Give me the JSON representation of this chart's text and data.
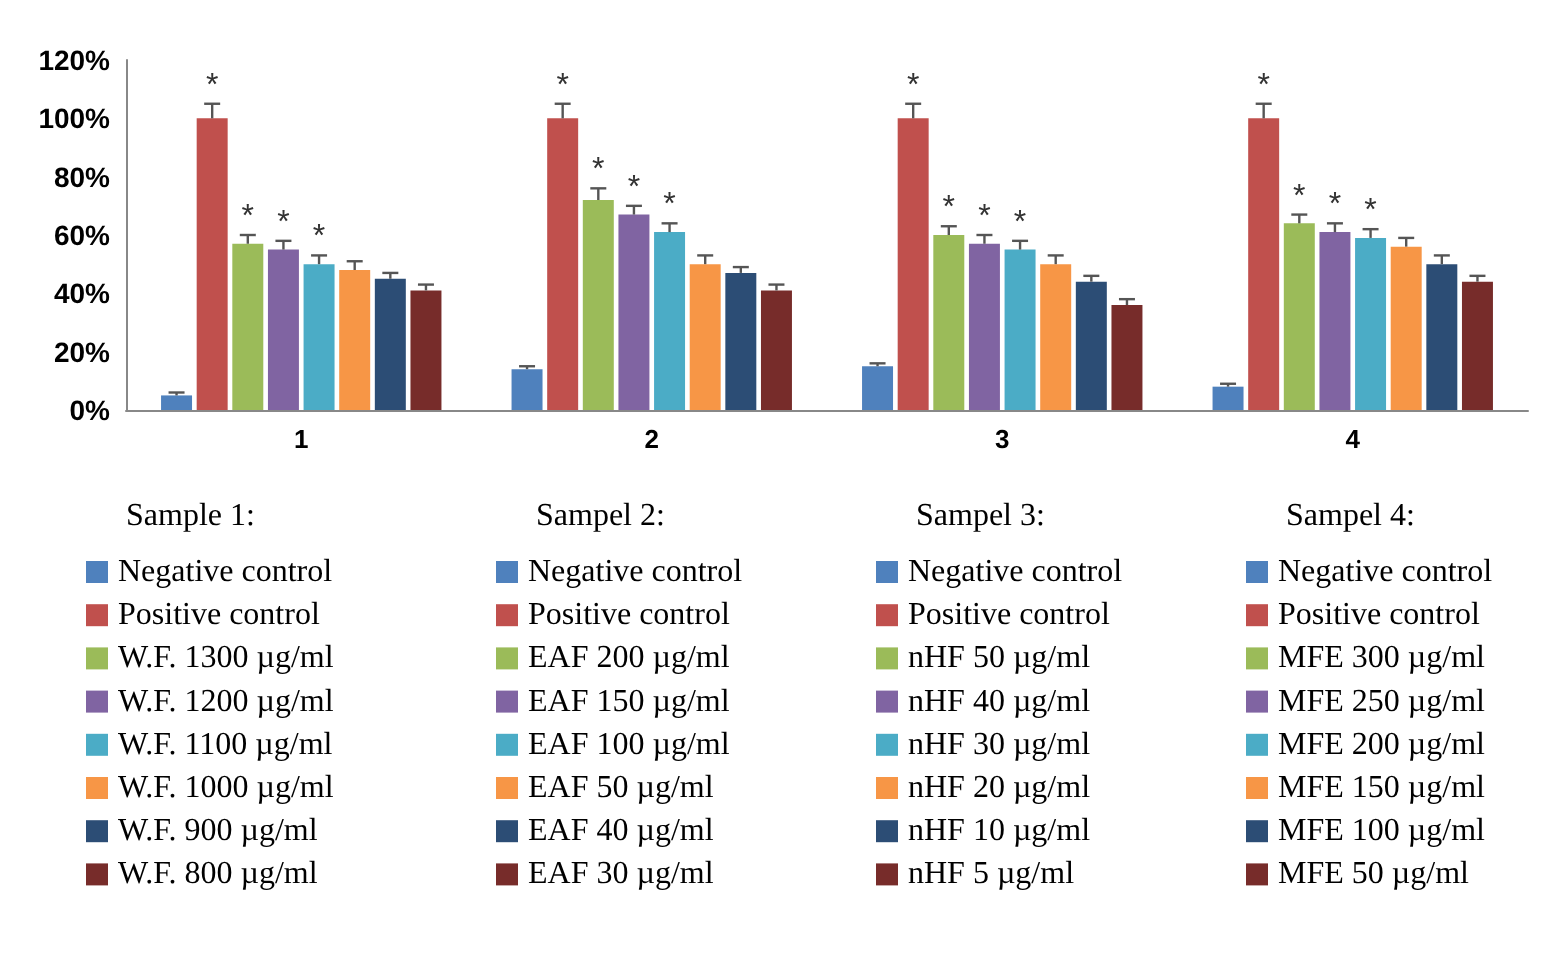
{
  "chart_data": {
    "type": "bar",
    "categories": [
      "1",
      "2",
      "3",
      "4"
    ],
    "ylim": [
      0,
      120
    ],
    "yticks": [
      {
        "value": 0,
        "label": "0%"
      },
      {
        "value": 20,
        "label": "20%"
      },
      {
        "value": 40,
        "label": "40%"
      },
      {
        "value": 60,
        "label": "60%"
      },
      {
        "value": 80,
        "label": "80%"
      },
      {
        "value": 100,
        "label": "100%"
      },
      {
        "value": 120,
        "label": "120%"
      }
    ],
    "grid": false,
    "legend": "bottom",
    "annotations": [
      "Sample 1:",
      "Sampel 2:",
      "Sampel 3:",
      "Sampel 4:"
    ],
    "series": [
      {
        "name": "Negative control",
        "color": "#4f81bd",
        "values": [
          5,
          null,
          null,
          null
        ],
        "errors": [
          1,
          null,
          null,
          null
        ],
        "value_labels": [
          null,
          null,
          null,
          null
        ]
      },
      {
        "name": "Positive control",
        "color": "#c0504d",
        "values": [
          100,
          null,
          null,
          null
        ],
        "errors": [
          5,
          null,
          null,
          null
        ],
        "value_labels": [
          "*",
          null,
          null,
          null
        ]
      },
      {
        "name": "W.F. 1300 µg/ml",
        "color": "#9bbb59",
        "values": [
          57,
          null,
          null,
          null
        ],
        "errors": [
          3,
          null,
          null,
          null
        ],
        "value_labels": [
          "*",
          null,
          null,
          null
        ]
      },
      {
        "name": "W.F. 1200 µg/ml",
        "color": "#8064a2",
        "values": [
          55,
          null,
          null,
          null
        ],
        "errors": [
          3,
          null,
          null,
          null
        ],
        "value_labels": [
          "*",
          null,
          null,
          null
        ]
      },
      {
        "name": "W.F. 1100 µg/ml",
        "color": "#4bacc6",
        "values": [
          50,
          null,
          null,
          null
        ],
        "errors": [
          3,
          null,
          null,
          null
        ],
        "value_labels": [
          "*",
          null,
          null,
          null
        ]
      },
      {
        "name": "W.F. 1000 µg/ml",
        "color": "#f79646",
        "values": [
          48,
          null,
          null,
          null
        ],
        "errors": [
          3,
          null,
          null,
          null
        ],
        "value_labels": [
          null,
          null,
          null,
          null
        ]
      },
      {
        "name": "W.F. 900 µg/ml",
        "color": "#2c4d75",
        "values": [
          45,
          null,
          null,
          null
        ],
        "errors": [
          2,
          null,
          null,
          null
        ],
        "value_labels": [
          null,
          null,
          null,
          null
        ]
      },
      {
        "name": "W.F. 800 µg/ml",
        "color": "#772c2a",
        "values": [
          41,
          null,
          null,
          null
        ],
        "errors": [
          2,
          null,
          null,
          null
        ],
        "value_labels": [
          null,
          null,
          null,
          null
        ]
      },
      {
        "name": "Negative control",
        "color": "#4f81bd",
        "values": [
          null,
          14,
          null,
          null
        ],
        "errors": [
          null,
          1,
          null,
          null
        ],
        "value_labels": [
          null,
          null,
          null,
          null
        ]
      },
      {
        "name": "Positive control",
        "color": "#c0504d",
        "values": [
          null,
          100,
          null,
          null
        ],
        "errors": [
          null,
          5,
          null,
          null
        ],
        "value_labels": [
          null,
          "*",
          null,
          null
        ]
      },
      {
        "name": "EAF 200 µg/ml",
        "color": "#9bbb59",
        "values": [
          null,
          72,
          null,
          null
        ],
        "errors": [
          null,
          4,
          null,
          null
        ],
        "value_labels": [
          null,
          "*",
          null,
          null
        ]
      },
      {
        "name": "EAF 150 µg/ml",
        "color": "#8064a2",
        "values": [
          null,
          67,
          null,
          null
        ],
        "errors": [
          null,
          3,
          null,
          null
        ],
        "value_labels": [
          null,
          "*",
          null,
          null
        ]
      },
      {
        "name": "EAF 100 µg/ml",
        "color": "#4bacc6",
        "values": [
          null,
          61,
          null,
          null
        ],
        "errors": [
          null,
          3,
          null,
          null
        ],
        "value_labels": [
          null,
          "*",
          null,
          null
        ]
      },
      {
        "name": "EAF 50 µg/ml",
        "color": "#f79646",
        "values": [
          null,
          50,
          null,
          null
        ],
        "errors": [
          null,
          3,
          null,
          null
        ],
        "value_labels": [
          null,
          null,
          null,
          null
        ]
      },
      {
        "name": "EAF 40 µg/ml",
        "color": "#2c4d75",
        "values": [
          null,
          47,
          null,
          null
        ],
        "errors": [
          null,
          2,
          null,
          null
        ],
        "value_labels": [
          null,
          null,
          null,
          null
        ]
      },
      {
        "name": "EAF 30 µg/ml",
        "color": "#772c2a",
        "values": [
          null,
          41,
          null,
          null
        ],
        "errors": [
          null,
          2,
          null,
          null
        ],
        "value_labels": [
          null,
          null,
          null,
          null
        ]
      },
      {
        "name": "Negative control",
        "color": "#4f81bd",
        "values": [
          null,
          null,
          15,
          null
        ],
        "errors": [
          null,
          null,
          1,
          null
        ],
        "value_labels": [
          null,
          null,
          null,
          null
        ]
      },
      {
        "name": "Positive control",
        "color": "#c0504d",
        "values": [
          null,
          null,
          100,
          null
        ],
        "errors": [
          null,
          null,
          5,
          null
        ],
        "value_labels": [
          null,
          null,
          "*",
          null
        ]
      },
      {
        "name": "nHF 50 µg/ml",
        "color": "#9bbb59",
        "values": [
          null,
          null,
          60,
          null
        ],
        "errors": [
          null,
          null,
          3,
          null
        ],
        "value_labels": [
          null,
          null,
          "*",
          null
        ]
      },
      {
        "name": "nHF 40 µg/ml",
        "color": "#8064a2",
        "values": [
          null,
          null,
          57,
          null
        ],
        "errors": [
          null,
          null,
          3,
          null
        ],
        "value_labels": [
          null,
          null,
          "*",
          null
        ]
      },
      {
        "name": "nHF 30 µg/ml",
        "color": "#4bacc6",
        "values": [
          null,
          null,
          55,
          null
        ],
        "errors": [
          null,
          null,
          3,
          null
        ],
        "value_labels": [
          null,
          null,
          "*",
          null
        ]
      },
      {
        "name": "nHF 20 µg/ml",
        "color": "#f79646",
        "values": [
          null,
          null,
          50,
          null
        ],
        "errors": [
          null,
          null,
          3,
          null
        ],
        "value_labels": [
          null,
          null,
          null,
          null
        ]
      },
      {
        "name": "nHF 10 µg/ml",
        "color": "#2c4d75",
        "values": [
          null,
          null,
          44,
          null
        ],
        "errors": [
          null,
          null,
          2,
          null
        ],
        "value_labels": [
          null,
          null,
          null,
          null
        ]
      },
      {
        "name": "nHF 5 µg/ml",
        "color": "#772c2a",
        "values": [
          null,
          null,
          36,
          null
        ],
        "errors": [
          null,
          null,
          2,
          null
        ],
        "value_labels": [
          null,
          null,
          null,
          null
        ]
      },
      {
        "name": "Negative control",
        "color": "#4f81bd",
        "values": [
          null,
          null,
          null,
          8
        ],
        "errors": [
          null,
          null,
          null,
          1
        ],
        "value_labels": [
          null,
          null,
          null,
          null
        ]
      },
      {
        "name": "Positive control",
        "color": "#c0504d",
        "values": [
          null,
          null,
          null,
          100
        ],
        "errors": [
          null,
          null,
          null,
          5
        ],
        "value_labels": [
          null,
          null,
          null,
          "*"
        ]
      },
      {
        "name": "MFE 300 µg/ml",
        "color": "#9bbb59",
        "values": [
          null,
          null,
          null,
          64
        ],
        "errors": [
          null,
          null,
          null,
          3
        ],
        "value_labels": [
          null,
          null,
          null,
          "*"
        ]
      },
      {
        "name": "MFE 250 µg/ml",
        "color": "#8064a2",
        "values": [
          null,
          null,
          null,
          61
        ],
        "errors": [
          null,
          null,
          null,
          3
        ],
        "value_labels": [
          null,
          null,
          null,
          "*"
        ]
      },
      {
        "name": "MFE 200 µg/ml",
        "color": "#4bacc6",
        "values": [
          null,
          null,
          null,
          59
        ],
        "errors": [
          null,
          null,
          null,
          3
        ],
        "value_labels": [
          null,
          null,
          null,
          "*"
        ]
      },
      {
        "name": "MFE 150 µg/ml",
        "color": "#f79646",
        "values": [
          null,
          null,
          null,
          56
        ],
        "errors": [
          null,
          null,
          null,
          3
        ],
        "value_labels": [
          null,
          null,
          null,
          null
        ]
      },
      {
        "name": "MFE 100 µg/ml",
        "color": "#2c4d75",
        "values": [
          null,
          null,
          null,
          50
        ],
        "errors": [
          null,
          null,
          null,
          3
        ],
        "value_labels": [
          null,
          null,
          null,
          null
        ]
      },
      {
        "name": "MFE 50 µg/ml",
        "color": "#772c2a",
        "values": [
          null,
          null,
          null,
          44
        ],
        "errors": [
          null,
          null,
          null,
          2
        ],
        "value_labels": [
          null,
          null,
          null,
          null
        ]
      }
    ]
  }
}
